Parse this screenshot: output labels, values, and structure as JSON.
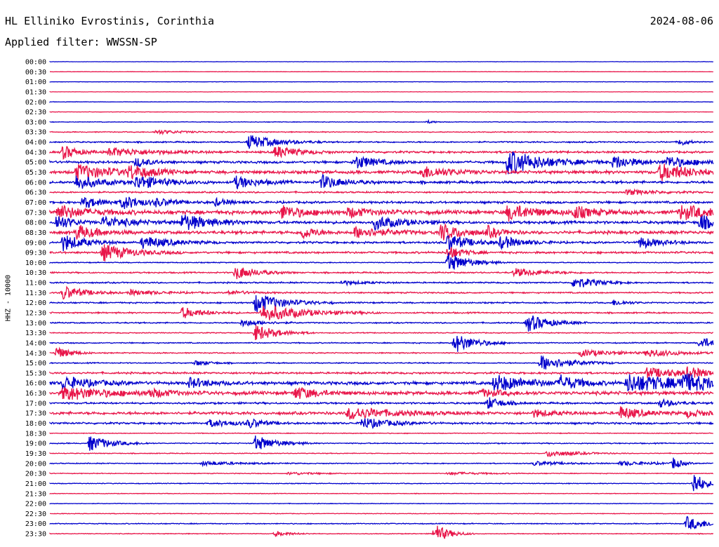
{
  "header": {
    "station": "HL Elliniko Evrostinis, Corinthia",
    "date": "2024-08-06",
    "filter": "Applied filter: WWSSN-SP"
  },
  "chart_data": {
    "type": "line",
    "title": "HL Elliniko Evrostinis, Corinthia",
    "ylabel": "HHZ - 10000",
    "trace_colors": [
      "#0000cc",
      "#e8164a"
    ],
    "baseline_color": "#0000cc",
    "rows": [
      {
        "label": "00:00",
        "color": "#0000cc",
        "noise": 0.2,
        "events": []
      },
      {
        "label": "00:30",
        "color": "#e8164a",
        "noise": 0.2,
        "events": []
      },
      {
        "label": "01:00",
        "color": "#0000cc",
        "noise": 0.25,
        "events": []
      },
      {
        "label": "01:30",
        "color": "#e8164a",
        "noise": 0.2,
        "events": []
      },
      {
        "label": "02:00",
        "color": "#0000cc",
        "noise": 0.3,
        "events": []
      },
      {
        "label": "02:30",
        "color": "#e8164a",
        "noise": 0.25,
        "events": []
      },
      {
        "label": "03:00",
        "color": "#0000cc",
        "noise": 0.4,
        "events": [
          {
            "x": 0.57,
            "amp": 2,
            "dur": 0.01
          }
        ]
      },
      {
        "label": "03:30",
        "color": "#e8164a",
        "noise": 0.6,
        "events": [
          {
            "x": 0.16,
            "amp": 3,
            "dur": 0.04
          }
        ]
      },
      {
        "label": "04:00",
        "color": "#0000cc",
        "noise": 0.9,
        "events": [
          {
            "x": 0.3,
            "amp": 10,
            "dur": 0.04
          },
          {
            "x": 0.95,
            "amp": 6,
            "dur": 0.01
          }
        ]
      },
      {
        "label": "04:30",
        "color": "#e8164a",
        "noise": 1.3,
        "events": [
          {
            "x": 0.02,
            "amp": 10,
            "dur": 0.02
          },
          {
            "x": 0.09,
            "amp": 6,
            "dur": 0.06
          },
          {
            "x": 0.34,
            "amp": 9,
            "dur": 0.03
          }
        ]
      },
      {
        "label": "05:00",
        "color": "#0000cc",
        "noise": 1.5,
        "events": [
          {
            "x": 0.13,
            "amp": 7,
            "dur": 0.02
          },
          {
            "x": 0.46,
            "amp": 10,
            "dur": 0.03
          },
          {
            "x": 0.69,
            "amp": 18,
            "dur": 0.05
          },
          {
            "x": 0.85,
            "amp": 10,
            "dur": 0.03
          },
          {
            "x": 0.93,
            "amp": 8,
            "dur": 0.04
          }
        ]
      },
      {
        "label": "05:30",
        "color": "#e8164a",
        "noise": 2,
        "events": [
          {
            "x": 0.04,
            "amp": 11,
            "dur": 0.05
          },
          {
            "x": 0.12,
            "amp": 9,
            "dur": 0.03
          },
          {
            "x": 0.56,
            "amp": 9,
            "dur": 0.04
          },
          {
            "x": 0.92,
            "amp": 12,
            "dur": 0.05
          }
        ]
      },
      {
        "label": "06:00",
        "color": "#0000cc",
        "noise": 1.6,
        "events": [
          {
            "x": 0.04,
            "amp": 11,
            "dur": 0.03
          },
          {
            "x": 0.13,
            "amp": 10,
            "dur": 0.04
          },
          {
            "x": 0.28,
            "amp": 9,
            "dur": 0.03
          },
          {
            "x": 0.41,
            "amp": 10,
            "dur": 0.03
          }
        ]
      },
      {
        "label": "06:30",
        "color": "#e8164a",
        "noise": 1,
        "events": [
          {
            "x": 0.87,
            "amp": 4,
            "dur": 0.04
          }
        ]
      },
      {
        "label": "07:00",
        "color": "#0000cc",
        "noise": 1.4,
        "events": [
          {
            "x": 0.05,
            "amp": 8,
            "dur": 0.03
          },
          {
            "x": 0.11,
            "amp": 9,
            "dur": 0.03
          },
          {
            "x": 0.16,
            "amp": 4,
            "dur": 0.03
          },
          {
            "x": 0.25,
            "amp": 5,
            "dur": 0.02
          }
        ]
      },
      {
        "label": "07:30",
        "color": "#e8164a",
        "noise": 2.5,
        "events": [
          {
            "x": 0.01,
            "amp": 10,
            "dur": 0.04
          },
          {
            "x": 0.35,
            "amp": 10,
            "dur": 0.03
          },
          {
            "x": 0.45,
            "amp": 7,
            "dur": 0.03
          },
          {
            "x": 0.69,
            "amp": 11,
            "dur": 0.04
          },
          {
            "x": 0.79,
            "amp": 8,
            "dur": 0.03
          },
          {
            "x": 0.95,
            "amp": 10,
            "dur": 0.05
          }
        ]
      },
      {
        "label": "08:00",
        "color": "#0000cc",
        "noise": 1.8,
        "events": [
          {
            "x": 0.01,
            "amp": 12,
            "dur": 0.02
          },
          {
            "x": 0.08,
            "amp": 8,
            "dur": 0.04
          },
          {
            "x": 0.2,
            "amp": 12,
            "dur": 0.04
          },
          {
            "x": 0.49,
            "amp": 9,
            "dur": 0.04
          },
          {
            "x": 0.98,
            "amp": 12,
            "dur": 0.02
          }
        ]
      },
      {
        "label": "08:30",
        "color": "#e8164a",
        "noise": 2,
        "events": [
          {
            "x": 0.04,
            "amp": 10,
            "dur": 0.03
          },
          {
            "x": 0.38,
            "amp": 9,
            "dur": 0.02
          },
          {
            "x": 0.46,
            "amp": 8,
            "dur": 0.04
          },
          {
            "x": 0.59,
            "amp": 12,
            "dur": 0.03
          },
          {
            "x": 0.66,
            "amp": 7,
            "dur": 0.02
          }
        ]
      },
      {
        "label": "09:00",
        "color": "#0000cc",
        "noise": 1.3,
        "events": [
          {
            "x": 0.02,
            "amp": 12,
            "dur": 0.03
          },
          {
            "x": 0.14,
            "amp": 9,
            "dur": 0.04
          },
          {
            "x": 0.6,
            "amp": 12,
            "dur": 0.03
          },
          {
            "x": 0.68,
            "amp": 9,
            "dur": 0.03
          },
          {
            "x": 0.89,
            "amp": 8,
            "dur": 0.03
          }
        ]
      },
      {
        "label": "09:30",
        "color": "#e8164a",
        "noise": 1.3,
        "events": [
          {
            "x": 0.08,
            "amp": 12,
            "dur": 0.04
          },
          {
            "x": 0.6,
            "amp": 10,
            "dur": 0.02
          }
        ]
      },
      {
        "label": "10:00",
        "color": "#0000cc",
        "noise": 0.6,
        "events": [
          {
            "x": 0.6,
            "amp": 14,
            "dur": 0.03
          }
        ]
      },
      {
        "label": "10:30",
        "color": "#e8164a",
        "noise": 0.9,
        "events": [
          {
            "x": 0.28,
            "amp": 10,
            "dur": 0.03
          },
          {
            "x": 0.7,
            "amp": 6,
            "dur": 0.04
          }
        ]
      },
      {
        "label": "11:00",
        "color": "#0000cc",
        "noise": 0.9,
        "events": [
          {
            "x": 0.44,
            "amp": 3,
            "dur": 0.03
          },
          {
            "x": 0.79,
            "amp": 9,
            "dur": 0.03
          }
        ]
      },
      {
        "label": "11:30",
        "color": "#e8164a",
        "noise": 0.9,
        "events": [
          {
            "x": 0.02,
            "amp": 10,
            "dur": 0.03
          },
          {
            "x": 0.12,
            "amp": 4,
            "dur": 0.04
          },
          {
            "x": 0.27,
            "amp": 3,
            "dur": 0.03
          }
        ]
      },
      {
        "label": "12:00",
        "color": "#0000cc",
        "noise": 0.9,
        "events": [
          {
            "x": 0.31,
            "amp": 14,
            "dur": 0.04
          },
          {
            "x": 0.85,
            "amp": 4,
            "dur": 0.02
          }
        ]
      },
      {
        "label": "12:30",
        "color": "#e8164a",
        "noise": 0.9,
        "events": [
          {
            "x": 0.2,
            "amp": 8,
            "dur": 0.03
          },
          {
            "x": 0.32,
            "amp": 12,
            "dur": 0.06
          }
        ]
      },
      {
        "label": "13:00",
        "color": "#0000cc",
        "noise": 0.8,
        "events": [
          {
            "x": 0.29,
            "amp": 5,
            "dur": 0.03
          },
          {
            "x": 0.72,
            "amp": 13,
            "dur": 0.03
          }
        ]
      },
      {
        "label": "13:30",
        "color": "#e8164a",
        "noise": 0.6,
        "events": [
          {
            "x": 0.31,
            "amp": 12,
            "dur": 0.03
          }
        ]
      },
      {
        "label": "14:00",
        "color": "#0000cc",
        "noise": 0.7,
        "events": [
          {
            "x": 0.61,
            "amp": 14,
            "dur": 0.03
          },
          {
            "x": 0.98,
            "amp": 9,
            "dur": 0.02
          }
        ]
      },
      {
        "label": "14:30",
        "color": "#e8164a",
        "noise": 0.7,
        "events": [
          {
            "x": 0.01,
            "amp": 9,
            "dur": 0.02
          },
          {
            "x": 0.8,
            "amp": 5,
            "dur": 0.05
          },
          {
            "x": 0.9,
            "amp": 5,
            "dur": 0.05
          }
        ]
      },
      {
        "label": "15:00",
        "color": "#0000cc",
        "noise": 0.7,
        "events": [
          {
            "x": 0.22,
            "amp": 4,
            "dur": 0.02
          },
          {
            "x": 0.74,
            "amp": 11,
            "dur": 0.04
          }
        ]
      },
      {
        "label": "15:30",
        "color": "#e8164a",
        "noise": 1.2,
        "events": [
          {
            "x": 0.9,
            "amp": 7,
            "dur": 0.06
          },
          {
            "x": 0.96,
            "amp": 6,
            "dur": 0.03
          }
        ]
      },
      {
        "label": "16:00",
        "color": "#0000cc",
        "noise": 2,
        "events": [
          {
            "x": 0.02,
            "amp": 9,
            "dur": 0.04
          },
          {
            "x": 0.21,
            "amp": 7,
            "dur": 0.03
          },
          {
            "x": 0.67,
            "amp": 12,
            "dur": 0.05
          },
          {
            "x": 0.77,
            "amp": 9,
            "dur": 0.03
          },
          {
            "x": 0.87,
            "amp": 13,
            "dur": 0.08
          },
          {
            "x": 0.95,
            "amp": 10,
            "dur": 0.05
          }
        ]
      },
      {
        "label": "16:30",
        "color": "#e8164a",
        "noise": 2.2,
        "events": [
          {
            "x": 0.02,
            "amp": 10,
            "dur": 0.06
          },
          {
            "x": 0.15,
            "amp": 5,
            "dur": 0.03
          },
          {
            "x": 0.37,
            "amp": 9,
            "dur": 0.03
          },
          {
            "x": 0.65,
            "amp": 5,
            "dur": 0.03
          }
        ]
      },
      {
        "label": "17:00",
        "color": "#0000cc",
        "noise": 1.2,
        "events": [
          {
            "x": 0.66,
            "amp": 9,
            "dur": 0.02
          },
          {
            "x": 0.92,
            "amp": 6,
            "dur": 0.02
          }
        ]
      },
      {
        "label": "17:30",
        "color": "#e8164a",
        "noise": 1.8,
        "events": [
          {
            "x": 0.45,
            "amp": 9,
            "dur": 0.06
          },
          {
            "x": 0.73,
            "amp": 5,
            "dur": 0.03
          },
          {
            "x": 0.86,
            "amp": 9,
            "dur": 0.03
          },
          {
            "x": 0.96,
            "amp": 5,
            "dur": 0.03
          }
        ]
      },
      {
        "label": "18:00",
        "color": "#0000cc",
        "noise": 1.2,
        "events": [
          {
            "x": 0.24,
            "amp": 5,
            "dur": 0.04
          },
          {
            "x": 0.3,
            "amp": 6,
            "dur": 0.02
          },
          {
            "x": 0.47,
            "amp": 8,
            "dur": 0.04
          }
        ]
      },
      {
        "label": "18:30",
        "color": "#e8164a",
        "noise": 0.5,
        "events": []
      },
      {
        "label": "19:00",
        "color": "#0000cc",
        "noise": 0.7,
        "events": [
          {
            "x": 0.06,
            "amp": 11,
            "dur": 0.03
          },
          {
            "x": 0.31,
            "amp": 11,
            "dur": 0.03
          }
        ]
      },
      {
        "label": "19:30",
        "color": "#e8164a",
        "noise": 0.5,
        "events": [
          {
            "x": 0.75,
            "amp": 5,
            "dur": 0.04
          }
        ]
      },
      {
        "label": "20:00",
        "color": "#0000cc",
        "noise": 0.6,
        "events": [
          {
            "x": 0.23,
            "amp": 3,
            "dur": 0.05
          },
          {
            "x": 0.73,
            "amp": 3,
            "dur": 0.04
          },
          {
            "x": 0.86,
            "amp": 3,
            "dur": 0.05
          },
          {
            "x": 0.94,
            "amp": 9,
            "dur": 0.01
          }
        ]
      },
      {
        "label": "20:30",
        "color": "#e8164a",
        "noise": 0.5,
        "events": [
          {
            "x": 0.36,
            "amp": 2,
            "dur": 0.04
          },
          {
            "x": 0.6,
            "amp": 2,
            "dur": 0.05
          }
        ]
      },
      {
        "label": "21:00",
        "color": "#0000cc",
        "noise": 0.5,
        "events": [
          {
            "x": 0.97,
            "amp": 18,
            "dur": 0.015
          }
        ]
      },
      {
        "label": "21:30",
        "color": "#e8164a",
        "noise": 0.4,
        "events": []
      },
      {
        "label": "22:00",
        "color": "#0000cc",
        "noise": 0.4,
        "events": []
      },
      {
        "label": "22:30",
        "color": "#e8164a",
        "noise": 0.4,
        "events": []
      },
      {
        "label": "23:00",
        "color": "#0000cc",
        "noise": 0.6,
        "events": [
          {
            "x": 0.96,
            "amp": 10,
            "dur": 0.03
          }
        ]
      },
      {
        "label": "23:30",
        "color": "#e8164a",
        "noise": 0.5,
        "events": [
          {
            "x": 0.34,
            "amp": 4,
            "dur": 0.02
          },
          {
            "x": 0.58,
            "amp": 14,
            "dur": 0.02
          }
        ]
      }
    ]
  }
}
